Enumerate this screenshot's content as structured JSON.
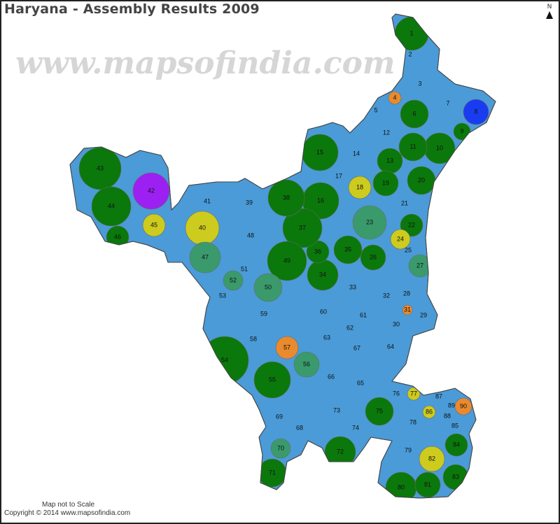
{
  "title": "Haryana - Assembly Results 2009",
  "compass": {
    "label": "N",
    "icon": "north-arrow-icon"
  },
  "footer": {
    "scale_note": "Map not to Scale",
    "copyright": "Copyright © 2014 www.mapsofindia.com"
  },
  "watermark": "www.mapsofindia.com",
  "palette": {
    "B": "#4a9bd8",
    "G": "#0b780b",
    "T": "#3a9a6c",
    "Y": "#cdcb1e",
    "O": "#ea8a2e",
    "P": "#9d20f2",
    "D": "#1a3cf0"
  },
  "constituencies": [
    {
      "n": "1",
      "c": "G"
    },
    {
      "n": "2",
      "c": "B"
    },
    {
      "n": "3",
      "c": "B"
    },
    {
      "n": "4",
      "c": "O"
    },
    {
      "n": "5",
      "c": "B"
    },
    {
      "n": "6",
      "c": "G"
    },
    {
      "n": "7",
      "c": "B"
    },
    {
      "n": "8",
      "c": "D"
    },
    {
      "n": "9",
      "c": "G"
    },
    {
      "n": "10",
      "c": "G"
    },
    {
      "n": "11",
      "c": "G"
    },
    {
      "n": "12",
      "c": "B"
    },
    {
      "n": "13",
      "c": "G"
    },
    {
      "n": "14",
      "c": "B"
    },
    {
      "n": "15",
      "c": "G"
    },
    {
      "n": "16",
      "c": "G"
    },
    {
      "n": "17",
      "c": "B"
    },
    {
      "n": "18",
      "c": "Y"
    },
    {
      "n": "19",
      "c": "G"
    },
    {
      "n": "20",
      "c": "G"
    },
    {
      "n": "21",
      "c": "B"
    },
    {
      "n": "22",
      "c": "G"
    },
    {
      "n": "23",
      "c": "T"
    },
    {
      "n": "24",
      "c": "Y"
    },
    {
      "n": "25",
      "c": "B"
    },
    {
      "n": "26",
      "c": "G"
    },
    {
      "n": "27",
      "c": "T"
    },
    {
      "n": "28",
      "c": "B"
    },
    {
      "n": "29",
      "c": "B"
    },
    {
      "n": "30",
      "c": "B"
    },
    {
      "n": "31",
      "c": "O"
    },
    {
      "n": "32",
      "c": "B"
    },
    {
      "n": "33",
      "c": "B"
    },
    {
      "n": "34",
      "c": "G"
    },
    {
      "n": "35",
      "c": "G"
    },
    {
      "n": "36",
      "c": "G"
    },
    {
      "n": "37",
      "c": "G"
    },
    {
      "n": "38",
      "c": "G"
    },
    {
      "n": "39",
      "c": "B"
    },
    {
      "n": "40",
      "c": "Y"
    },
    {
      "n": "41",
      "c": "B"
    },
    {
      "n": "42",
      "c": "P"
    },
    {
      "n": "43",
      "c": "G"
    },
    {
      "n": "44",
      "c": "G"
    },
    {
      "n": "45",
      "c": "Y"
    },
    {
      "n": "46",
      "c": "G"
    },
    {
      "n": "47",
      "c": "T"
    },
    {
      "n": "48",
      "c": "B"
    },
    {
      "n": "49",
      "c": "G"
    },
    {
      "n": "50",
      "c": "T"
    },
    {
      "n": "51",
      "c": "B"
    },
    {
      "n": "52",
      "c": "T"
    },
    {
      "n": "53",
      "c": "B"
    },
    {
      "n": "54",
      "c": "G"
    },
    {
      "n": "55",
      "c": "G"
    },
    {
      "n": "56",
      "c": "T"
    },
    {
      "n": "57",
      "c": "O"
    },
    {
      "n": "58",
      "c": "B"
    },
    {
      "n": "59",
      "c": "B"
    },
    {
      "n": "60",
      "c": "B"
    },
    {
      "n": "61",
      "c": "B"
    },
    {
      "n": "62",
      "c": "B"
    },
    {
      "n": "63",
      "c": "B"
    },
    {
      "n": "64",
      "c": "B"
    },
    {
      "n": "65",
      "c": "B"
    },
    {
      "n": "66",
      "c": "B"
    },
    {
      "n": "67",
      "c": "B"
    },
    {
      "n": "68",
      "c": "B"
    },
    {
      "n": "69",
      "c": "B"
    },
    {
      "n": "70",
      "c": "T"
    },
    {
      "n": "71",
      "c": "G"
    },
    {
      "n": "72",
      "c": "G"
    },
    {
      "n": "73",
      "c": "B"
    },
    {
      "n": "74",
      "c": "B"
    },
    {
      "n": "75",
      "c": "G"
    },
    {
      "n": "76",
      "c": "B"
    },
    {
      "n": "77",
      "c": "Y"
    },
    {
      "n": "78",
      "c": "B"
    },
    {
      "n": "79",
      "c": "B"
    },
    {
      "n": "80",
      "c": "G"
    },
    {
      "n": "81",
      "c": "G"
    },
    {
      "n": "82",
      "c": "Y"
    },
    {
      "n": "83",
      "c": "G"
    },
    {
      "n": "84",
      "c": "G"
    },
    {
      "n": "85",
      "c": "B"
    },
    {
      "n": "86",
      "c": "Y"
    },
    {
      "n": "87",
      "c": "B"
    },
    {
      "n": "88",
      "c": "B"
    },
    {
      "n": "89",
      "c": "B"
    },
    {
      "n": "90",
      "c": "O"
    }
  ]
}
